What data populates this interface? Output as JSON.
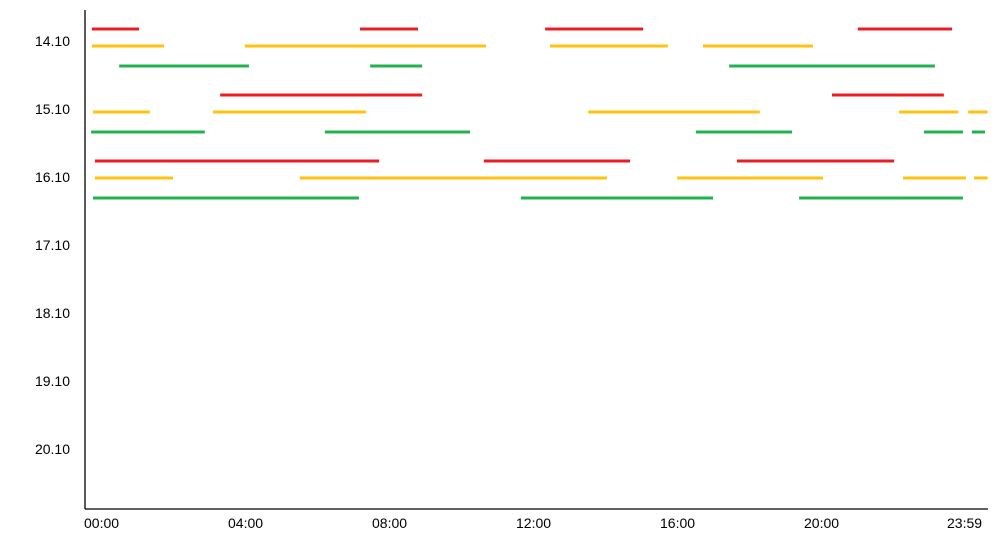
{
  "chart_data": {
    "type": "timeline",
    "title": "",
    "xlabel": "",
    "ylabel": "",
    "x_ticks": [
      "00:00",
      "04:00",
      "08:00",
      "12:00",
      "16:00",
      "20:00",
      "23:59"
    ],
    "xlim_hours": [
      0,
      24
    ],
    "days": [
      "14.10",
      "15.10",
      "16.10",
      "17.10",
      "18.10",
      "19.10",
      "20.10"
    ],
    "grid": false,
    "legend": "none",
    "series_colors": {
      "red": "#ed1c24",
      "yellow": "#ffc20e",
      "green": "#22b14c"
    },
    "segments": [
      {
        "day": "14.10",
        "color": "red",
        "intervals_hours": [
          [
            0.05,
            1.31
          ],
          [
            7.22,
            8.77
          ],
          [
            12.17,
            14.79
          ],
          [
            20.53,
            23.05
          ]
        ]
      },
      {
        "day": "14.10",
        "color": "yellow",
        "intervals_hours": [
          [
            0.05,
            1.98
          ],
          [
            4.14,
            10.59
          ],
          [
            12.3,
            15.45
          ],
          [
            16.39,
            19.33
          ]
        ]
      },
      {
        "day": "14.10",
        "color": "green",
        "intervals_hours": [
          [
            0.78,
            4.25
          ],
          [
            7.49,
            8.88
          ],
          [
            17.09,
            22.59
          ]
        ]
      },
      {
        "day": "15.10",
        "color": "red",
        "intervals_hours": [
          [
            3.48,
            8.88
          ],
          [
            19.84,
            22.83
          ]
        ]
      },
      {
        "day": "15.10",
        "color": "yellow",
        "intervals_hours": [
          [
            0.08,
            1.6
          ],
          [
            3.29,
            7.38
          ],
          [
            13.32,
            17.91
          ],
          [
            21.63,
            23.21
          ],
          [
            23.48,
            24.0
          ]
        ]
      },
      {
        "day": "15.10",
        "color": "green",
        "intervals_hours": [
          [
            0.03,
            3.07
          ],
          [
            6.28,
            10.16
          ],
          [
            16.2,
            18.77
          ],
          [
            22.3,
            23.34
          ],
          [
            23.58,
            23.93
          ]
        ]
      },
      {
        "day": "16.10",
        "color": "red",
        "intervals_hours": [
          [
            0.13,
            7.73
          ],
          [
            10.53,
            14.44
          ],
          [
            17.3,
            21.5
          ]
        ]
      },
      {
        "day": "16.10",
        "color": "yellow",
        "intervals_hours": [
          [
            0.13,
            2.22
          ],
          [
            5.61,
            13.82
          ],
          [
            15.7,
            19.6
          ],
          [
            21.74,
            23.42
          ],
          [
            23.64,
            24.0
          ]
        ]
      },
      {
        "day": "16.10",
        "color": "green",
        "intervals_hours": [
          [
            0.08,
            7.19
          ],
          [
            11.52,
            16.66
          ],
          [
            18.96,
            23.34
          ]
        ]
      }
    ]
  }
}
